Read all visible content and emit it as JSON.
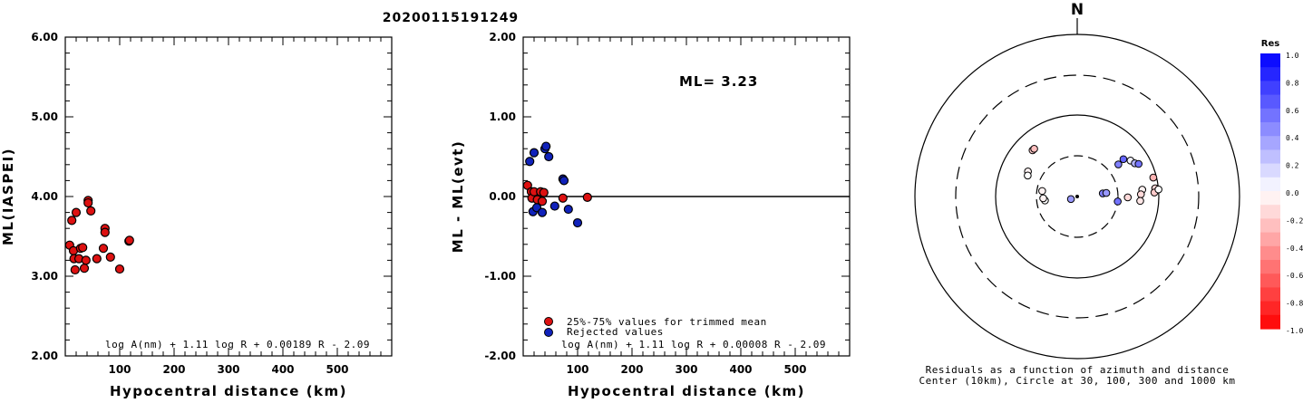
{
  "title": "20200115191249",
  "colors": {
    "red": "#dd1111",
    "blue": "#1022bb"
  },
  "chart_data": [
    {
      "type": "scatter",
      "xlabel": "Hypocentral distance (km)",
      "ylabel": "ML(IASPEI)",
      "xlim": [
        0,
        600
      ],
      "ylim": [
        2.0,
        6.0
      ],
      "xticks": [
        "100",
        "200",
        "300",
        "400",
        "500"
      ],
      "yticks": [
        "2.00",
        "3.00",
        "4.00",
        "5.00",
        "6.00"
      ],
      "formula": "log A(nm) + 1.11 log R + 0.00189 R - 2.09",
      "series": [
        {
          "color": "red",
          "points": [
            [
              8,
              3.39
            ],
            [
              12,
              3.7
            ],
            [
              15,
              3.32
            ],
            [
              16,
              3.22
            ],
            [
              18,
              3.08
            ],
            [
              20,
              3.8
            ],
            [
              25,
              3.22
            ],
            [
              28,
              3.35
            ],
            [
              32,
              3.36
            ],
            [
              35,
              3.1
            ],
            [
              38,
              3.2
            ],
            [
              42,
              3.95
            ],
            [
              42,
              3.92
            ],
            [
              47,
              3.82
            ],
            [
              58,
              3.22
            ],
            [
              70,
              3.35
            ],
            [
              73,
              3.6
            ],
            [
              73,
              3.55
            ],
            [
              83,
              3.24
            ],
            [
              100,
              3.09
            ],
            [
              117,
              3.44
            ],
            [
              118,
              3.45
            ]
          ]
        }
      ]
    },
    {
      "type": "scatter",
      "xlabel": "Hypocentral distance (km)",
      "ylabel": "ML - ML(evt)",
      "xlim": [
        0,
        600
      ],
      "ylim": [
        -2.0,
        2.0
      ],
      "xticks": [
        "100",
        "200",
        "300",
        "400",
        "500"
      ],
      "yticks": [
        "-2.00",
        "-1.00",
        "0.00",
        "1.00",
        "2.00"
      ],
      "annotation": "ML= 3.23",
      "formula": "log A(nm) + 1.11 log R + 0.00008 R - 2.09",
      "legend": [
        {
          "label": "25%-75% values for trimmed mean",
          "color": "red"
        },
        {
          "label": "Rejected values",
          "color": "blue"
        }
      ],
      "series": [
        {
          "color": "red",
          "points": [
            [
              8,
              0.14
            ],
            [
              15,
              0.06
            ],
            [
              16,
              -0.02
            ],
            [
              20,
              0.06
            ],
            [
              26,
              -0.04
            ],
            [
              32,
              0.06
            ],
            [
              35,
              -0.06
            ],
            [
              38,
              0.05
            ],
            [
              73,
              -0.02
            ],
            [
              118,
              -0.01
            ]
          ]
        },
        {
          "color": "blue",
          "points": [
            [
              12,
              0.44
            ],
            [
              18,
              -0.19
            ],
            [
              20,
              0.55
            ],
            [
              25,
              -0.14
            ],
            [
              35,
              -0.2
            ],
            [
              40,
              0.6
            ],
            [
              42,
              0.63
            ],
            [
              47,
              0.5
            ],
            [
              58,
              -0.12
            ],
            [
              73,
              0.22
            ],
            [
              75,
              0.2
            ],
            [
              83,
              -0.16
            ],
            [
              100,
              -0.33
            ]
          ]
        }
      ]
    },
    {
      "type": "scatter",
      "north_label": "N",
      "caption_line1": "Residuals as a function of azimuth and distance",
      "caption_line2": "Center (10km), Circle at 30, 100, 300 and 1000 km",
      "colorbar": {
        "title": "Res",
        "labels": [
          "1.0",
          "0.8",
          "0.6",
          "0.4",
          "0.2",
          "0.0",
          "-0.2",
          "-0.4",
          "-0.6",
          "-0.8",
          "-1.0"
        ]
      },
      "series": [
        {
          "name": "",
          "points": [
            {
              "az": 316,
              "dist": 60,
              "res": -0.2
            },
            {
              "az": 318,
              "dist": 60,
              "res": -0.25
            },
            {
              "az": 297,
              "dist": 46,
              "res": -0.05
            },
            {
              "az": 293,
              "dist": 44,
              "res": 0.0
            },
            {
              "az": 279,
              "dist": 26,
              "res": -0.05
            },
            {
              "az": 263,
              "dist": 24,
              "res": 0.0
            },
            {
              "az": 267,
              "dist": 25,
              "res": -0.05
            },
            {
              "az": 248,
              "dist": 12,
              "res": 0.4
            },
            {
              "az": 51,
              "dist": 52,
              "res": 0.6
            },
            {
              "az": 52,
              "dist": 42,
              "res": 0.5
            },
            {
              "az": 56,
              "dist": 60,
              "res": 0.05
            },
            {
              "az": 60,
              "dist": 64,
              "res": 0.3
            },
            {
              "az": 62,
              "dist": 70,
              "res": 0.55
            },
            {
              "az": 83,
              "dist": 20,
              "res": 0.5
            },
            {
              "az": 83,
              "dist": 22,
              "res": 0.4
            },
            {
              "az": 97,
              "dist": 30,
              "res": 0.55
            },
            {
              "az": 91,
              "dist": 40,
              "res": -0.15
            },
            {
              "az": 84,
              "dist": 62,
              "res": -0.05
            },
            {
              "az": 88,
              "dist": 59,
              "res": -0.15
            },
            {
              "az": 94,
              "dist": 58,
              "res": -0.1
            },
            {
              "az": 76,
              "dist": 91,
              "res": -0.3
            },
            {
              "az": 84,
              "dist": 91,
              "res": -0.15
            },
            {
              "az": 87,
              "dist": 88,
              "res": -0.2
            },
            {
              "az": 85,
              "dist": 100,
              "res": 0.0
            }
          ]
        }
      ]
    }
  ]
}
